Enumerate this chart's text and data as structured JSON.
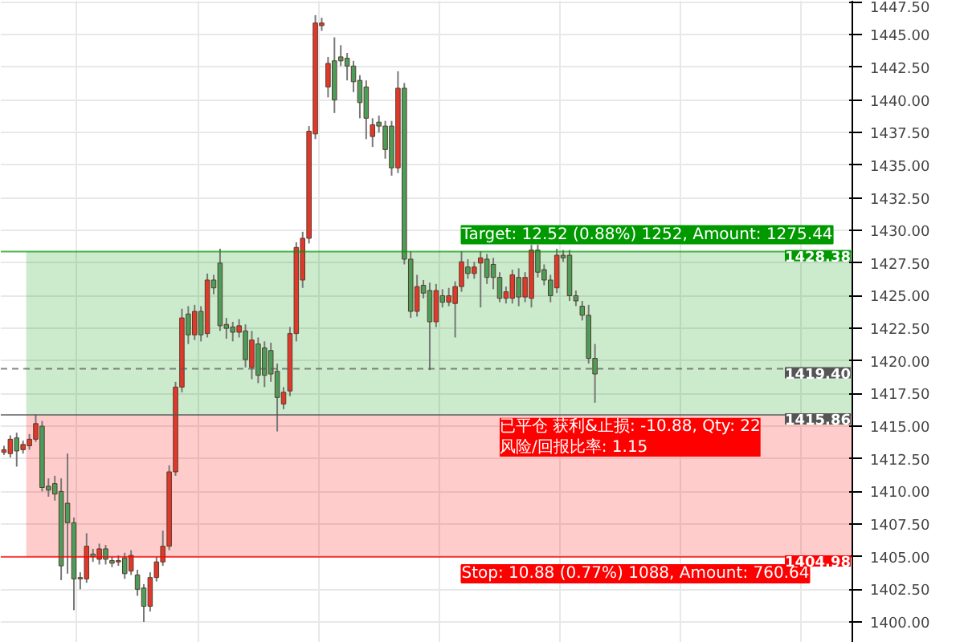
{
  "chart_data": {
    "type": "candlestick",
    "categories": [
      null,
      null,
      null,
      null,
      null,
      null,
      null,
      null,
      null,
      null,
      null,
      null,
      null,
      null,
      null,
      null,
      null,
      null,
      null,
      null,
      null,
      null,
      null,
      null,
      null,
      null,
      null,
      null,
      null,
      null,
      null,
      null,
      null,
      null,
      null,
      null,
      null,
      null,
      null,
      null,
      null,
      null,
      null,
      null,
      null,
      null,
      null,
      null,
      null,
      null,
      null,
      null,
      null,
      null,
      null,
      null,
      null,
      null,
      null,
      null,
      null,
      null,
      null,
      null,
      null,
      null,
      null,
      null,
      null,
      null,
      null,
      null,
      null,
      null,
      null,
      null,
      null,
      null,
      null,
      null,
      null,
      null,
      null,
      null,
      null,
      null,
      null,
      null,
      null,
      null,
      null,
      null,
      null,
      null,
      null,
      null,
      null,
      null,
      null,
      null,
      null,
      null,
      null,
      null,
      null,
      null,
      null,
      null,
      null,
      null,
      null,
      null,
      null,
      null,
      null,
      null,
      null,
      null,
      null,
      null,
      null,
      null,
      null,
      null,
      null,
      null,
      null,
      null,
      null,
      null,
      null,
      null,
      null,
      null
    ],
    "ohlc": [
      [
        1413.0,
        1413.5,
        1412.8,
        1413.2
      ],
      [
        1412.9,
        1414.3,
        1412.6,
        1414.0
      ],
      [
        1414.1,
        1414.5,
        1411.9,
        1413.1
      ],
      [
        1413.2,
        1413.9,
        1412.9,
        1413.6
      ],
      [
        1413.5,
        1414.4,
        1413.2,
        1414.0
      ],
      [
        1414.0,
        1415.9,
        1413.8,
        1415.2
      ],
      [
        1415.0,
        1415.4,
        1410.0,
        1410.3
      ],
      [
        1410.4,
        1411.0,
        1409.6,
        1410.1
      ],
      [
        1410.6,
        1411.2,
        1409.3,
        1409.8
      ],
      [
        1410.0,
        1411.0,
        1403.2,
        1404.3
      ],
      [
        1409.1,
        1412.9,
        1403.7,
        1407.6
      ],
      [
        1407.6,
        1408.0,
        1400.9,
        1403.3
      ],
      [
        1403.4,
        1403.8,
        1402.5,
        1403.3
      ],
      [
        1403.3,
        1406.8,
        1403.0,
        1405.8
      ],
      [
        1405.2,
        1405.6,
        1404.6,
        1405.0
      ],
      [
        1404.8,
        1406.0,
        1404.4,
        1405.6
      ],
      [
        1405.6,
        1405.9,
        1404.4,
        1404.8
      ],
      [
        1404.7,
        1405.0,
        1404.2,
        1404.5
      ],
      [
        1404.6,
        1405.1,
        1404.3,
        1404.7
      ],
      [
        1404.9,
        1405.3,
        1403.3,
        1403.7
      ],
      [
        1403.9,
        1405.5,
        1403.6,
        1405.1
      ],
      [
        1403.6,
        1404.0,
        1402.0,
        1402.5
      ],
      [
        1402.6,
        1402.9,
        1400.0,
        1401.2
      ],
      [
        1401.2,
        1403.8,
        1400.8,
        1403.4
      ],
      [
        1403.4,
        1405.0,
        1403.1,
        1404.6
      ],
      [
        1404.6,
        1407.0,
        1404.3,
        1405.8
      ],
      [
        1405.8,
        1412.0,
        1405.5,
        1411.5
      ],
      [
        1411.5,
        1418.4,
        1411.2,
        1418.0
      ],
      [
        1418.0,
        1424.0,
        1417.6,
        1423.3
      ],
      [
        1423.6,
        1424.2,
        1421.3,
        1422.0
      ],
      [
        1422.0,
        1424.3,
        1421.6,
        1423.8
      ],
      [
        1423.8,
        1424.2,
        1421.5,
        1422.0
      ],
      [
        1422.1,
        1426.7,
        1421.8,
        1426.2
      ],
      [
        1426.2,
        1426.6,
        1425.1,
        1425.6
      ],
      [
        1427.5,
        1428.6,
        1422.3,
        1422.7
      ],
      [
        1422.8,
        1423.3,
        1421.7,
        1422.5
      ],
      [
        1422.6,
        1423.0,
        1421.5,
        1422.2
      ],
      [
        1422.2,
        1423.2,
        1421.8,
        1422.7
      ],
      [
        1422.3,
        1422.8,
        1419.5,
        1420.1
      ],
      [
        1419.5,
        1422.3,
        1418.6,
        1421.6
      ],
      [
        1421.3,
        1421.8,
        1418.3,
        1418.9
      ],
      [
        1421.0,
        1421.5,
        1418.0,
        1418.9
      ],
      [
        1420.8,
        1421.4,
        1418.4,
        1419.0
      ],
      [
        1419.2,
        1419.8,
        1414.6,
        1417.2
      ],
      [
        1416.7,
        1418.0,
        1416.3,
        1417.6
      ],
      [
        1417.7,
        1422.6,
        1417.3,
        1422.1
      ],
      [
        1422.1,
        1429.1,
        1421.5,
        1428.7
      ],
      [
        1426.2,
        1429.9,
        1425.6,
        1429.4
      ],
      [
        1429.4,
        1438.0,
        1429.0,
        1437.6
      ],
      [
        1437.4,
        1446.5,
        1437.0,
        1445.9
      ],
      [
        1445.7,
        1446.3,
        1445.3,
        1445.9
      ],
      [
        1441.0,
        1443.3,
        1440.2,
        1442.8
      ],
      [
        1443.0,
        1444.8,
        1439.0,
        1440.0
      ],
      [
        1443.3,
        1444.2,
        1442.6,
        1443.0
      ],
      [
        1443.2,
        1443.6,
        1441.5,
        1442.6
      ],
      [
        1442.6,
        1443.0,
        1440.6,
        1441.4
      ],
      [
        1441.5,
        1441.9,
        1438.6,
        1439.8
      ],
      [
        1441.0,
        1441.5,
        1437.0,
        1438.6
      ],
      [
        1437.2,
        1438.6,
        1436.4,
        1438.1
      ],
      [
        1438.3,
        1438.8,
        1437.5,
        1438.0
      ],
      [
        1438.0,
        1438.4,
        1435.5,
        1436.2
      ],
      [
        1438.0,
        1438.4,
        1434.2,
        1434.8
      ],
      [
        1434.8,
        1442.2,
        1434.4,
        1440.9
      ],
      [
        1440.9,
        1441.3,
        1427.4,
        1427.8
      ],
      [
        1427.8,
        1428.4,
        1423.3,
        1423.8
      ],
      [
        1423.8,
        1426.6,
        1423.4,
        1425.7
      ],
      [
        1425.8,
        1426.2,
        1424.8,
        1425.2
      ],
      [
        1425.4,
        1426.0,
        1419.3,
        1423.0
      ],
      [
        1423.0,
        1425.9,
        1422.6,
        1425.4
      ],
      [
        1425.0,
        1425.5,
        1424.1,
        1424.5
      ],
      [
        1424.5,
        1425.6,
        1424.2,
        1425.0
      ],
      [
        1424.4,
        1426.1,
        1421.8,
        1425.7
      ],
      [
        1425.7,
        1428.4,
        1425.3,
        1427.6
      ],
      [
        1427.2,
        1427.8,
        1426.3,
        1426.7
      ],
      [
        1426.7,
        1427.6,
        1426.3,
        1427.2
      ],
      [
        1427.5,
        1428.4,
        1424.1,
        1427.9
      ],
      [
        1427.8,
        1428.2,
        1425.9,
        1426.4
      ],
      [
        1427.4,
        1427.9,
        1425.5,
        1426.4
      ],
      [
        1426.4,
        1426.8,
        1424.5,
        1424.8
      ],
      [
        1424.8,
        1425.7,
        1424.4,
        1425.3
      ],
      [
        1424.8,
        1427.0,
        1424.4,
        1426.6
      ],
      [
        1426.4,
        1427.1,
        1424.2,
        1424.9
      ],
      [
        1424.9,
        1426.8,
        1424.5,
        1426.4
      ],
      [
        1424.8,
        1428.9,
        1424.1,
        1428.5
      ],
      [
        1428.5,
        1428.9,
        1426.4,
        1426.8
      ],
      [
        1427.0,
        1427.4,
        1425.8,
        1426.2
      ],
      [
        1426.2,
        1426.6,
        1424.5,
        1425.0
      ],
      [
        1425.6,
        1428.6,
        1425.2,
        1428.1
      ],
      [
        1428.1,
        1428.5,
        1427.6,
        1427.9
      ],
      [
        1428.1,
        1428.5,
        1424.6,
        1425.0
      ],
      [
        1425.0,
        1425.4,
        1424.2,
        1424.6
      ],
      [
        1424.2,
        1424.6,
        1423.1,
        1423.5
      ],
      [
        1423.5,
        1424.3,
        1419.8,
        1420.2
      ],
      [
        1420.2,
        1421.3,
        1416.8,
        1419.0
      ],
      null,
      null,
      null,
      null,
      null,
      null,
      null,
      null,
      null,
      null,
      null,
      null,
      null,
      null,
      null,
      null,
      null,
      null,
      null,
      null,
      null,
      null,
      null,
      null,
      null,
      null,
      null,
      null,
      null,
      null,
      null,
      null,
      null,
      null,
      null,
      null,
      null,
      null,
      null,
      null
    ],
    "ylim": [
      1398.4,
      1447.6
    ],
    "yticks": [
      {
        "value": 1400,
        "label": "1400.00"
      },
      {
        "value": 1402.5,
        "label": "1402.50"
      },
      {
        "value": 1405,
        "label": "1405.00"
      },
      {
        "value": 1407.5,
        "label": "1407.50"
      },
      {
        "value": 1410,
        "label": "1410.00"
      },
      {
        "value": 1412.5,
        "label": "1412.50"
      },
      {
        "value": 1415,
        "label": "1415.00"
      },
      {
        "value": 1417.5,
        "label": "1417.50"
      },
      {
        "value": 1420,
        "label": "1420.00"
      },
      {
        "value": 1422.5,
        "label": "1422.50"
      },
      {
        "value": 1425,
        "label": "1425.00"
      },
      {
        "value": 1427.5,
        "label": "1427.50"
      },
      {
        "value": 1430,
        "label": "1430.00"
      },
      {
        "value": 1432.5,
        "label": "1432.50"
      },
      {
        "value": 1435,
        "label": "1435.00"
      },
      {
        "value": 1437.5,
        "label": "1437.50"
      },
      {
        "value": 1440,
        "label": "1440.00"
      },
      {
        "value": 1442.5,
        "label": "1442.50"
      },
      {
        "value": 1445,
        "label": "1445.00"
      },
      {
        "value": 1447.5,
        "label": "1447.50"
      }
    ],
    "tick_labels": "y",
    "grid": true,
    "bands": [
      {
        "axis": "y",
        "from": 1415.86,
        "to": 1428.38,
        "label": "Target: 12.52 (0.88%) 1252, Amount: 1275.44",
        "color": "#009900"
      },
      {
        "axis": "y",
        "from": 1404.98,
        "to": 1415.86,
        "label": "Stop: 10.88 (0.77%) 1088, Amount: 760.64",
        "color": "#ff0000"
      }
    ],
    "ref_lines": [
      {
        "axis": "y",
        "value": 1428.38,
        "label": "1428.38",
        "color": "#009900",
        "line_style": "solid"
      },
      {
        "axis": "y",
        "value": 1419.4,
        "label": "1419.40",
        "color": "#555555",
        "line_style": "dashed"
      },
      {
        "axis": "y",
        "value": 1415.86,
        "label": "1415.86",
        "color": "#555555",
        "line_style": "solid"
      },
      {
        "axis": "y",
        "value": 1404.98,
        "label": "1404.98",
        "color": "#ff0000",
        "line_style": "solid"
      }
    ],
    "annotations": [
      "已平仓 获利&止损: -10.88, Qty: 22\n风险/回报比率: 1.15"
    ]
  }
}
